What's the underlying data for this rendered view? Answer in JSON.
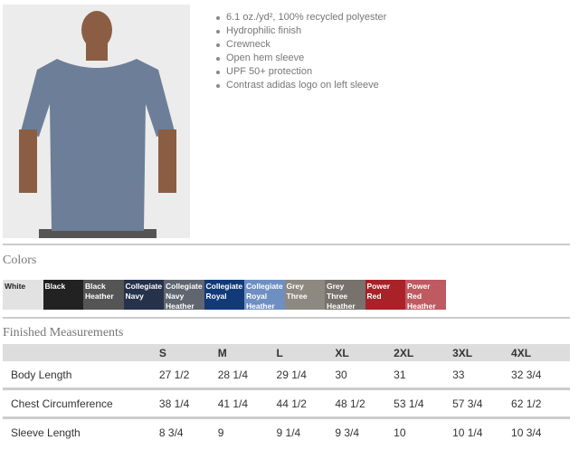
{
  "features": [
    "6.1 oz./yd², 100% recycled polyester",
    "Hydrophilic finish",
    "Crewneck",
    "Open hem sleeve",
    "UPF 50+ protection",
    "Contrast adidas logo on left sleeve"
  ],
  "colors_title": "Colors",
  "colors": [
    {
      "name": "White",
      "hex": "#e2e2e2",
      "text": "#222"
    },
    {
      "name": "Black",
      "hex": "#222222",
      "text": "#fff"
    },
    {
      "name": "Black Heather",
      "hex": "#555555",
      "text": "#fff"
    },
    {
      "name": "Collegiate Navy",
      "hex": "#26324a",
      "text": "#fff"
    },
    {
      "name": "Collegiate Navy Heather",
      "hex": "#5f6670",
      "text": "#fff"
    },
    {
      "name": "Collegiate Royal",
      "hex": "#123a78",
      "text": "#fff"
    },
    {
      "name": "Collegiate Royal Heather",
      "hex": "#6f8fc2",
      "text": "#fff"
    },
    {
      "name": "Grey Three",
      "hex": "#8d8880",
      "text": "#fff"
    },
    {
      "name": "Grey Three Heather",
      "hex": "#77726c",
      "text": "#fff"
    },
    {
      "name": "Power Red",
      "hex": "#a82228",
      "text": "#fff"
    },
    {
      "name": "Power Red Heather",
      "hex": "#bf5a60",
      "text": "#fff"
    }
  ],
  "measurements_title": "Finished Measurements",
  "sizes": [
    "S",
    "M",
    "L",
    "XL",
    "2XL",
    "3XL",
    "4XL"
  ],
  "rows": [
    {
      "label": "Body Length",
      "values": [
        "27 1/2",
        "28 1/4",
        "29 1/4",
        "30",
        "31",
        "33",
        "32 3/4"
      ]
    },
    {
      "label": "Chest Circumference",
      "values": [
        "38 1/4",
        "41 1/4",
        "44 1/2",
        "48 1/2",
        "53 1/4",
        "57 3/4",
        "62 1/2"
      ]
    },
    {
      "label": "Sleeve Length",
      "values": [
        "8 3/4",
        "9",
        "9 1/4",
        "9 3/4",
        "10",
        "10 1/4",
        "10 3/4"
      ]
    }
  ]
}
